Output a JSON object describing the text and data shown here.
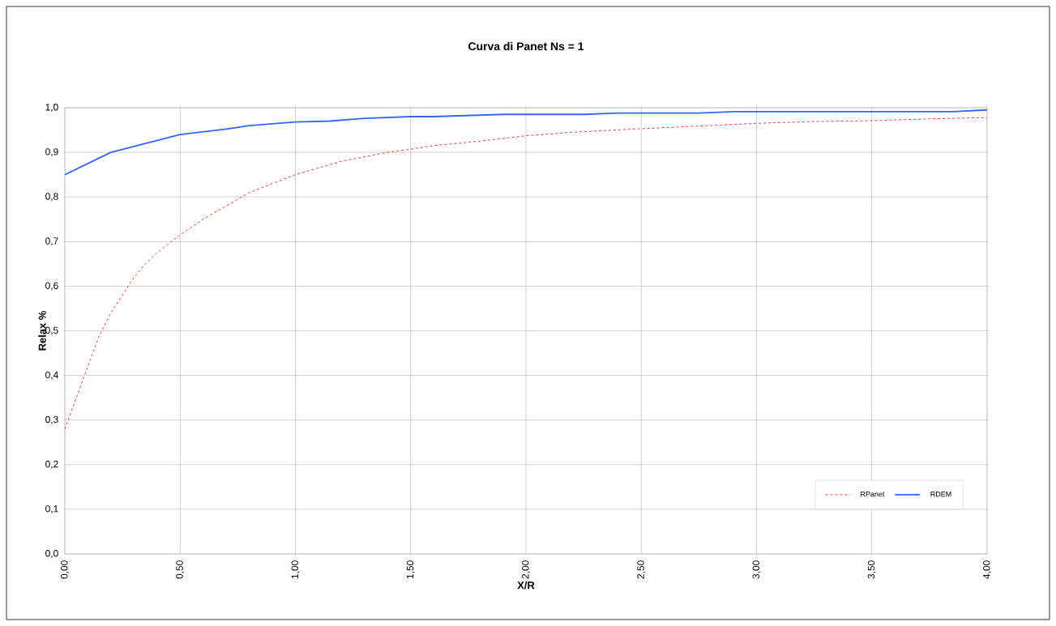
{
  "chart_data": {
    "type": "line",
    "title": "Curva di Panet Ns = 1",
    "xlabel": "X/R",
    "ylabel": "Relax %",
    "xlim": [
      0,
      4
    ],
    "ylim": [
      0,
      1
    ],
    "xticks": [
      {
        "value": 0,
        "label": "0,00"
      },
      {
        "value": 0.5,
        "label": "0,50"
      },
      {
        "value": 1,
        "label": "1,00"
      },
      {
        "value": 1.5,
        "label": "1,50"
      },
      {
        "value": 2,
        "label": "2,00"
      },
      {
        "value": 2.5,
        "label": "2,50"
      },
      {
        "value": 3,
        "label": "3,00"
      },
      {
        "value": 3.5,
        "label": "3,50"
      },
      {
        "value": 4,
        "label": "4,00"
      }
    ],
    "yticks": [
      {
        "value": 0,
        "label": "0,0"
      },
      {
        "value": 0.1,
        "label": "0,1"
      },
      {
        "value": 0.2,
        "label": "0,2"
      },
      {
        "value": 0.3,
        "label": "0,3"
      },
      {
        "value": 0.4,
        "label": "0,4"
      },
      {
        "value": 0.5,
        "label": "0,5"
      },
      {
        "value": 0.6,
        "label": "0,6"
      },
      {
        "value": 0.7,
        "label": "0,7"
      },
      {
        "value": 0.8,
        "label": "0,8"
      },
      {
        "value": 0.9,
        "label": "0,9"
      },
      {
        "value": 1,
        "label": "1,0"
      }
    ],
    "grid": true,
    "legend": "bottom right",
    "series": [
      {
        "name": "RPanet",
        "color": "#ff0000",
        "line_style": "dashed",
        "x": [
          0,
          0.05,
          0.1,
          0.15,
          0.2,
          0.25,
          0.3,
          0.35,
          0.4,
          0.5,
          0.6,
          0.7,
          0.75,
          0.8,
          0.9,
          1.0,
          1.1,
          1.2,
          1.3,
          1.4,
          1.5,
          1.6,
          1.8,
          2.0,
          2.2,
          2.5,
          2.8,
          3.0,
          3.25,
          3.5,
          3.75,
          4.0
        ],
        "values": [
          0.28,
          0.35,
          0.42,
          0.49,
          0.54,
          0.58,
          0.62,
          0.65,
          0.675,
          0.715,
          0.75,
          0.78,
          0.795,
          0.81,
          0.83,
          0.85,
          0.865,
          0.88,
          0.89,
          0.9,
          0.907,
          0.915,
          0.925,
          0.937,
          0.945,
          0.953,
          0.96,
          0.965,
          0.969,
          0.971,
          0.975,
          0.978
        ]
      },
      {
        "name": "RDEM",
        "color": "#3366ff",
        "line_style": "solid",
        "x": [
          0,
          0.1,
          0.2,
          0.35,
          0.5,
          0.7,
          0.8,
          1.0,
          1.15,
          1.3,
          1.5,
          1.6,
          1.9,
          2.25,
          2.4,
          2.75,
          2.9,
          3.5,
          3.85,
          4.0
        ],
        "values": [
          0.85,
          0.875,
          0.9,
          0.92,
          0.94,
          0.952,
          0.96,
          0.968,
          0.97,
          0.976,
          0.98,
          0.98,
          0.985,
          0.985,
          0.988,
          0.988,
          0.991,
          0.991,
          0.991,
          0.995
        ]
      }
    ]
  }
}
